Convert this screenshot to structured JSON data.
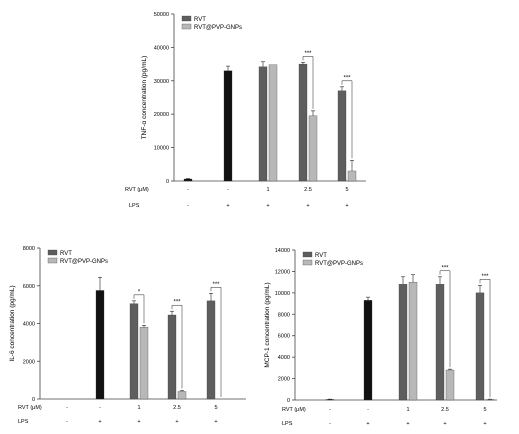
{
  "colors": {
    "control_lps": "#111111",
    "rvt": "#5e5e5e",
    "rvt_pvp": "#b8b8b8",
    "axis": "#444444"
  },
  "chart_data": [
    {
      "type": "bar",
      "ylabel": "TNF-α concentration (pg/mL)",
      "ylim": [
        0,
        50000
      ],
      "yticks": [
        "0",
        "10000",
        "20000",
        "30000",
        "40000",
        "50000"
      ],
      "legend": [
        "RVT",
        "RVT@PVP-GNPs"
      ],
      "legend_position": "top-left",
      "row_labels": [
        "RVT (μM)",
        "LPS"
      ],
      "groups": [
        {
          "rvt": "-",
          "lps": "-",
          "bars": [
            {
              "series": "control",
              "value": 600,
              "err": 150
            }
          ]
        },
        {
          "rvt": "-",
          "lps": "+",
          "bars": [
            {
              "series": "control",
              "value": 33000,
              "err": 1400
            }
          ]
        },
        {
          "rvt": "1",
          "lps": "+",
          "bars": [
            {
              "series": "rvt",
              "value": 34200,
              "err": 1500
            },
            {
              "series": "rvt_pvp",
              "value": 34800,
              "err": 0
            }
          ]
        },
        {
          "rvt": "2.5",
          "lps": "+",
          "bars": [
            {
              "series": "rvt",
              "value": 35000,
              "err": 500
            },
            {
              "series": "rvt_pvp",
              "value": 19500,
              "err": 1500
            }
          ]
        },
        {
          "rvt": "5",
          "lps": "+",
          "bars": [
            {
              "series": "rvt",
              "value": 27000,
              "err": 1200
            },
            {
              "series": "rvt_pvp",
              "value": 3000,
              "err": 3200
            }
          ]
        }
      ],
      "significance": [
        {
          "group": 3,
          "label": "***"
        },
        {
          "group": 4,
          "label": "***"
        }
      ]
    },
    {
      "type": "bar",
      "ylabel": "IL-6 concentration (pg/mL)",
      "ylim": [
        0,
        8000
      ],
      "yticks": [
        "0",
        "2000",
        "4000",
        "6000",
        "8000"
      ],
      "legend": [
        "RVT",
        "RVT@PVP-GNPs"
      ],
      "legend_position": "top-left",
      "row_labels": [
        "RVT (μM)",
        "LPS"
      ],
      "groups": [
        {
          "rvt": "-",
          "lps": "-",
          "bars": [
            {
              "series": "control",
              "value": 0,
              "err": 0
            }
          ]
        },
        {
          "rvt": "-",
          "lps": "+",
          "bars": [
            {
              "series": "control",
              "value": 5750,
              "err": 700
            }
          ]
        },
        {
          "rvt": "1",
          "lps": "+",
          "bars": [
            {
              "series": "rvt",
              "value": 5050,
              "err": 150
            },
            {
              "series": "rvt_pvp",
              "value": 3800,
              "err": 100
            }
          ]
        },
        {
          "rvt": "2.5",
          "lps": "+",
          "bars": [
            {
              "series": "rvt",
              "value": 4450,
              "err": 200
            },
            {
              "series": "rvt_pvp",
              "value": 400,
              "err": 50
            }
          ]
        },
        {
          "rvt": "5",
          "lps": "+",
          "bars": [
            {
              "series": "rvt",
              "value": 5200,
              "err": 400
            },
            {
              "series": "rvt_pvp",
              "value": 0,
              "err": 0
            }
          ]
        }
      ],
      "significance": [
        {
          "group": 2,
          "label": "*"
        },
        {
          "group": 3,
          "label": "***"
        },
        {
          "group": 4,
          "label": "***"
        }
      ]
    },
    {
      "type": "bar",
      "ylabel": "MCP-1 concentration (pg/mL)",
      "ylim": [
        0,
        14000
      ],
      "yticks": [
        "0",
        "2000",
        "4000",
        "6000",
        "8000",
        "10000",
        "12000",
        "14000"
      ],
      "legend": [
        "RVT",
        "RVT@PVP-GNPs"
      ],
      "legend_position": "top-left",
      "row_labels": [
        "RVT (μM)",
        "LPS"
      ],
      "groups": [
        {
          "rvt": "-",
          "lps": "-",
          "bars": [
            {
              "series": "control",
              "value": 50,
              "err": 30
            }
          ]
        },
        {
          "rvt": "-",
          "lps": "+",
          "bars": [
            {
              "series": "control",
              "value": 9300,
              "err": 300
            }
          ]
        },
        {
          "rvt": "1",
          "lps": "+",
          "bars": [
            {
              "series": "rvt",
              "value": 10800,
              "err": 700
            },
            {
              "series": "rvt_pvp",
              "value": 11000,
              "err": 700
            }
          ]
        },
        {
          "rvt": "2.5",
          "lps": "+",
          "bars": [
            {
              "series": "rvt",
              "value": 10800,
              "err": 700
            },
            {
              "series": "rvt_pvp",
              "value": 2800,
              "err": 80
            }
          ]
        },
        {
          "rvt": "5",
          "lps": "+",
          "bars": [
            {
              "series": "rvt",
              "value": 10000,
              "err": 700
            },
            {
              "series": "rvt_pvp",
              "value": 50,
              "err": 30
            }
          ]
        }
      ],
      "significance": [
        {
          "group": 3,
          "label": "***"
        },
        {
          "group": 4,
          "label": "***"
        }
      ]
    }
  ]
}
